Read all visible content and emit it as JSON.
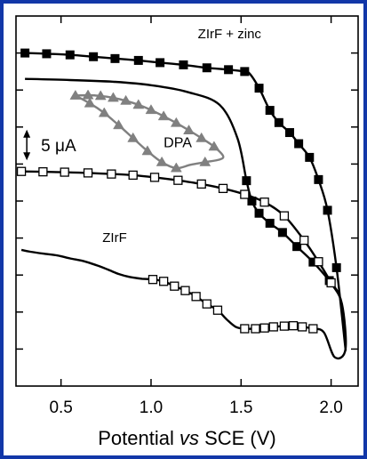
{
  "chart_data": {
    "type": "line",
    "xlabel": {
      "pre": "Potential ",
      "italic": "vs",
      "post": " SCE (V)"
    },
    "ylabel": "",
    "xlim": [
      0.25,
      2.15
    ],
    "ylim": [
      0,
      10
    ],
    "x_ticks": [
      0.5,
      1.0,
      1.5,
      2.0
    ],
    "x_tick_labels": [
      "0.5",
      "1.0",
      "1.5",
      "2.0"
    ],
    "y_tick_values": [
      1,
      2,
      3,
      4,
      5,
      6,
      7,
      8,
      9
    ],
    "grid": false,
    "scale_bar": {
      "label": "5 μA",
      "x": 0.31,
      "y_from": 6.1,
      "y_to": 6.93
    },
    "annotations": [
      {
        "text": "ZIrF + zinc",
        "x": 1.26,
        "y": 9.4
      },
      {
        "text": "DPA",
        "x": 1.07,
        "y": 6.45
      },
      {
        "text": "ZIrF",
        "x": 0.73,
        "y": 3.9
      }
    ],
    "series": [
      {
        "label": "ZIrF + zinc",
        "color": "#000000",
        "marker": "square-filled",
        "x": [
          0.3,
          0.42,
          0.55,
          0.68,
          0.8,
          0.93,
          1.05,
          1.18,
          1.31,
          1.43,
          1.52,
          1.55,
          1.6,
          1.66,
          1.71,
          1.77,
          1.82,
          1.88,
          1.93,
          1.98,
          2.03,
          2.08,
          2.06,
          2.05,
          2.03,
          1.99,
          1.9,
          1.81,
          1.73,
          1.66,
          1.6,
          1.56,
          1.53,
          1.48,
          1.38,
          1.2,
          1.0,
          0.8,
          0.55,
          0.3
        ],
        "y": [
          9.0,
          8.98,
          8.95,
          8.9,
          8.85,
          8.8,
          8.74,
          8.68,
          8.6,
          8.55,
          8.5,
          8.43,
          8.05,
          7.45,
          7.12,
          6.85,
          6.55,
          6.18,
          5.58,
          4.75,
          3.2,
          1.0,
          2.0,
          2.4,
          2.6,
          2.85,
          3.35,
          3.77,
          4.15,
          4.4,
          4.67,
          5.0,
          5.55,
          6.7,
          7.6,
          7.95,
          8.13,
          8.22,
          8.27,
          8.3
        ],
        "marker_every": [
          0,
          1,
          2,
          3,
          4,
          5,
          6,
          7,
          8,
          9,
          10,
          12,
          13,
          14,
          15,
          16,
          17,
          18,
          19,
          20,
          25,
          26,
          27,
          28,
          29,
          30,
          31,
          32
        ]
      },
      {
        "label": "ZIrF",
        "color": "#000000",
        "marker": "square-open",
        "x": [
          0.28,
          0.4,
          0.52,
          0.65,
          0.78,
          0.9,
          1.02,
          1.15,
          1.28,
          1.4,
          1.52,
          1.63,
          1.74,
          1.85,
          1.93,
          2.0,
          2.06,
          2.08,
          2.02,
          1.96,
          1.9,
          1.84,
          1.79,
          1.74,
          1.68,
          1.63,
          1.58,
          1.52,
          1.47,
          1.42,
          1.37,
          1.31,
          1.25,
          1.19,
          1.13,
          1.07,
          1.01,
          0.95,
          0.88,
          0.82,
          0.76,
          0.7,
          0.63,
          0.55,
          0.48,
          0.4,
          0.33,
          0.28
        ],
        "y": [
          5.8,
          5.79,
          5.78,
          5.76,
          5.73,
          5.7,
          5.64,
          5.56,
          5.46,
          5.34,
          5.18,
          4.97,
          4.6,
          3.94,
          3.36,
          2.79,
          2.22,
          1.0,
          0.78,
          1.45,
          1.55,
          1.6,
          1.63,
          1.62,
          1.6,
          1.57,
          1.55,
          1.55,
          1.6,
          1.8,
          2.05,
          2.22,
          2.42,
          2.58,
          2.7,
          2.83,
          2.88,
          2.9,
          2.95,
          3.03,
          3.15,
          3.26,
          3.37,
          3.45,
          3.53,
          3.58,
          3.63,
          3.68
        ],
        "marker_every": [
          0,
          1,
          2,
          3,
          4,
          5,
          6,
          7,
          8,
          9,
          10,
          11,
          12,
          13,
          14,
          15,
          20,
          21,
          22,
          23,
          24,
          25,
          26,
          27,
          30,
          31,
          32,
          33,
          34,
          35,
          36
        ]
      },
      {
        "label": "DPA",
        "color": "#808080",
        "marker": "triangle-filled",
        "x": [
          0.58,
          0.65,
          0.72,
          0.79,
          0.86,
          0.93,
          1.0,
          1.07,
          1.14,
          1.21,
          1.28,
          1.35,
          1.4,
          1.38,
          1.3,
          1.22,
          1.14,
          1.06,
          0.98,
          0.9,
          0.82,
          0.74,
          0.66,
          0.58
        ],
        "y": [
          7.85,
          7.86,
          7.84,
          7.79,
          7.71,
          7.6,
          7.46,
          7.29,
          7.11,
          6.91,
          6.7,
          6.47,
          6.22,
          6.12,
          6.05,
          5.98,
          5.89,
          6.05,
          6.35,
          6.7,
          7.05,
          7.38,
          7.64,
          7.85
        ],
        "marker_every": [
          0,
          1,
          2,
          3,
          4,
          5,
          6,
          7,
          8,
          9,
          10,
          11,
          14,
          16,
          17,
          18,
          19,
          20,
          21,
          22
        ]
      }
    ]
  }
}
